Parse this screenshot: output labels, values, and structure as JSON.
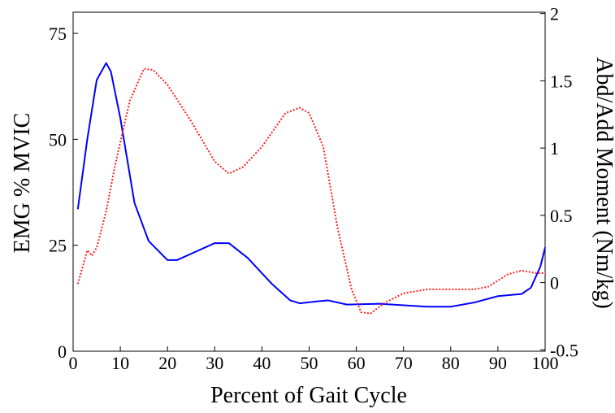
{
  "chart_data": {
    "type": "line",
    "x_label": "Percent of Gait Cycle",
    "y_label": "EMG % MVIC",
    "y2_label": "Abd/Add Moment (Nm/kg)",
    "xlim": [
      0,
      100
    ],
    "xticks": [
      0,
      10,
      20,
      30,
      40,
      50,
      60,
      70,
      80,
      90,
      100
    ],
    "ylim": [
      0,
      80
    ],
    "yticks": [
      0,
      25,
      50,
      75
    ],
    "y2lim": [
      -0.51,
      2.01
    ],
    "y2ticks": [
      -0.5,
      0,
      0.5,
      1,
      1.5,
      2
    ],
    "series": [
      {
        "color": "#0000ff",
        "style": "solid",
        "axis": "y",
        "x": [
          1,
          3,
          5,
          7,
          8,
          10,
          13,
          16,
          20,
          22,
          25,
          30,
          33,
          37,
          42,
          46,
          48,
          52,
          54,
          58,
          65,
          75,
          80,
          85,
          90,
          95,
          97,
          99,
          100
        ],
        "values": [
          33.5,
          50,
          64,
          68,
          66,
          55,
          35,
          26,
          21.5,
          21.5,
          23,
          25.5,
          25.5,
          22,
          16,
          12,
          11.3,
          11.8,
          12,
          11,
          11.2,
          10.5,
          10.5,
          11.5,
          13,
          13.5,
          15,
          20,
          24.5
        ]
      },
      {
        "color": "#ff2020",
        "style": "dotted",
        "axis": "y2",
        "x": [
          1,
          3,
          4,
          5,
          7,
          9,
          12,
          15,
          17,
          20,
          25,
          30,
          33,
          36,
          40,
          45,
          48,
          50,
          53,
          56,
          59,
          61,
          63,
          66,
          70,
          75,
          80,
          85,
          88,
          92,
          95,
          98,
          100
        ],
        "values": [
          -0.01,
          0.24,
          0.2,
          0.26,
          0.53,
          0.89,
          1.35,
          1.59,
          1.58,
          1.47,
          1.2,
          0.9,
          0.81,
          0.86,
          1.01,
          1.26,
          1.3,
          1.26,
          1.01,
          0.41,
          -0.05,
          -0.22,
          -0.23,
          -0.15,
          -0.08,
          -0.05,
          -0.05,
          -0.05,
          -0.03,
          0.06,
          0.09,
          0.07,
          0.07
        ]
      }
    ]
  }
}
